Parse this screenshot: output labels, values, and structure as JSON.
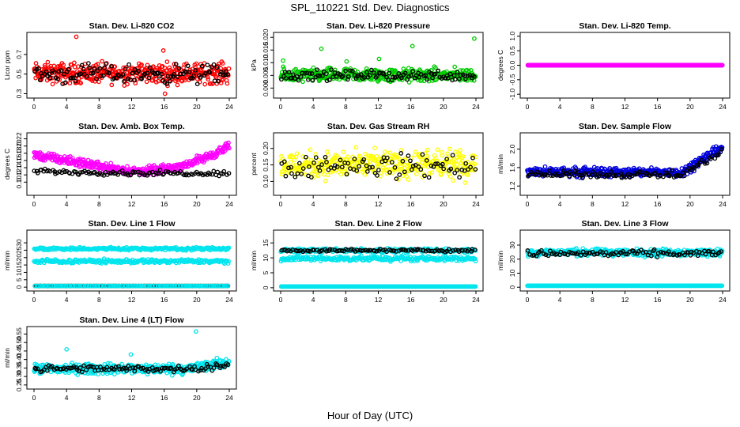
{
  "figure": {
    "title": "SPL_110221  Std. Dev. Diagnostics",
    "xlabel": "Hour of Day (UTC)"
  },
  "chart_data": [
    {
      "type": "scatter",
      "title": "Stan. Dev. Li-820 CO2",
      "ylabel": "Licor ppm",
      "xlim": [
        0,
        24
      ],
      "ylim": [
        0.28,
        0.9
      ],
      "xticks": [
        "0",
        "4",
        "8",
        "12",
        "16",
        "20",
        "24"
      ],
      "yticks": [
        "0.3",
        "0.5",
        "0.7"
      ],
      "ytick_values": [
        0.3,
        0.5,
        0.7
      ],
      "series": [
        {
          "color": "#ff0000",
          "pattern": {
            "kind": "band",
            "count": 420,
            "low": 0.36,
            "high": 0.66
          },
          "extra_points": [
            {
              "x": 5.2,
              "y": 0.88
            },
            {
              "x": 16.1,
              "y": 0.3
            },
            {
              "x": 15.9,
              "y": 0.74
            }
          ]
        },
        {
          "color": "#000000",
          "pattern": {
            "kind": "band",
            "count": 120,
            "low": 0.36,
            "high": 0.64
          }
        }
      ]
    },
    {
      "type": "scatter",
      "title": "Stan. Dev. Li-820 Pressure",
      "ylabel": "kPa",
      "xlim": [
        0,
        24
      ],
      "ylim": [
        -0.003,
        0.021
      ],
      "xticks": [
        "0",
        "4",
        "8",
        "12",
        "16",
        "20",
        "24"
      ],
      "yticks": [
        "0.000",
        "0.005",
        "0.010",
        "0.015",
        "0.020"
      ],
      "ytick_values": [
        0.0,
        0.005,
        0.01,
        0.015,
        0.02
      ],
      "series": [
        {
          "color": "#00cc00",
          "pattern": {
            "kind": "band",
            "count": 420,
            "low": 0.001,
            "high": 0.009
          },
          "extra_points": [
            {
              "x": 23.8,
              "y": 0.0195
            },
            {
              "x": 16.2,
              "y": 0.0165
            },
            {
              "x": 5.0,
              "y": 0.0155
            },
            {
              "x": 0.3,
              "y": 0.0108
            },
            {
              "x": 8.1,
              "y": 0.0105
            },
            {
              "x": 12.1,
              "y": 0.0115
            }
          ]
        },
        {
          "color": "#000000",
          "pattern": {
            "kind": "band",
            "count": 110,
            "low": 0.002,
            "high": 0.008
          }
        }
      ]
    },
    {
      "type": "scatter",
      "title": "Stan. Dev. Li-820 Temp.",
      "ylabel": "degrees C",
      "xlim": [
        0,
        24
      ],
      "ylim": [
        -1.05,
        1.05
      ],
      "xticks": [
        "0",
        "4",
        "8",
        "12",
        "16",
        "20",
        "24"
      ],
      "yticks": [
        "-1.0",
        "-0.5",
        "0.0",
        "0.5",
        "1.0"
      ],
      "ytick_values": [
        -1.0,
        -0.5,
        0.0,
        0.5,
        1.0
      ],
      "series": [
        {
          "color": "#000000",
          "pattern": {
            "kind": "line",
            "count": 150,
            "value": 0.0
          }
        },
        {
          "color": "#ff00ff",
          "pattern": {
            "kind": "line",
            "count": 300,
            "value": 0.0
          }
        }
      ]
    },
    {
      "type": "scatter",
      "title": "Stan. Dev. Amb. Box Temp.",
      "ylabel": "degrees C",
      "xlim": [
        0,
        24
      ],
      "ylim": [
        0.07,
        0.23
      ],
      "xticks": [
        "0",
        "4",
        "8",
        "12",
        "16",
        "20",
        "24"
      ],
      "yticks": [
        "0.10",
        "0.12",
        "0.14",
        "0.16",
        "0.18",
        "0.20",
        "0.22"
      ],
      "ytick_values": [
        0.1,
        0.12,
        0.14,
        0.16,
        0.18,
        0.2,
        0.22
      ],
      "series": [
        {
          "color": "#ff00ff",
          "pattern": {
            "kind": "u",
            "count": 420,
            "start": 0.175,
            "mid": 0.13,
            "end": 0.2,
            "spread": 0.035
          }
        },
        {
          "color": "#000000",
          "pattern": {
            "kind": "u",
            "count": 110,
            "start": 0.13,
            "mid": 0.125,
            "end": 0.125,
            "spread": 0.02
          }
        }
      ]
    },
    {
      "type": "scatter",
      "title": "Stan. Dev. Gas Stream RH",
      "ylabel": "percent",
      "xlim": [
        0,
        24
      ],
      "ylim": [
        0.065,
        0.24
      ],
      "xticks": [
        "0",
        "4",
        "8",
        "12",
        "16",
        "20",
        "24"
      ],
      "yticks": [
        "0.10",
        "0.15",
        "0.20"
      ],
      "ytick_values": [
        0.1,
        0.15,
        0.2
      ],
      "series": [
        {
          "color": "#ffff00",
          "pattern": {
            "kind": "band",
            "count": 380,
            "low": 0.09,
            "high": 0.21
          }
        },
        {
          "color": "#000000",
          "pattern": {
            "kind": "band",
            "count": 90,
            "low": 0.095,
            "high": 0.2
          }
        }
      ]
    },
    {
      "type": "scatter",
      "title": "Stan. Dev. Sample Flow",
      "ylabel": "ml/min",
      "xlim": [
        0,
        24
      ],
      "ylim": [
        1.05,
        2.3
      ],
      "xticks": [
        "0",
        "4",
        "8",
        "12",
        "16",
        "20",
        "24"
      ],
      "yticks": [
        "1.2",
        "1.6",
        "2.0"
      ],
      "ytick_values": [
        1.2,
        1.6,
        2.0
      ],
      "series": [
        {
          "color": "#0000dd",
          "pattern": {
            "kind": "rise",
            "count": 430,
            "base": 1.5,
            "spread": 0.3,
            "rise_start": 19,
            "rise_end": 2.05
          }
        },
        {
          "color": "#000000",
          "pattern": {
            "kind": "rise",
            "count": 110,
            "base": 1.45,
            "spread": 0.2,
            "rise_start": 19,
            "rise_end": 1.95
          }
        }
      ]
    },
    {
      "type": "scatter",
      "title": "Stan. Dev. Line 1 Flow",
      "ylabel": "ml/min",
      "xlim": [
        0,
        24
      ],
      "ylim": [
        -1,
        37
      ],
      "xticks": [
        "0",
        "4",
        "8",
        "12",
        "16",
        "20",
        "24"
      ],
      "yticks": [
        "0",
        "5",
        "10",
        "15",
        "20",
        "25",
        "30"
      ],
      "ytick_values": [
        0,
        5,
        10,
        15,
        20,
        25,
        30
      ],
      "series": [
        {
          "color": "#00e5ee",
          "pattern": {
            "kind": "band",
            "count": 260,
            "low": 24.5,
            "high": 27.5
          }
        },
        {
          "color": "#00e5ee",
          "pattern": {
            "kind": "band",
            "count": 260,
            "low": 15.5,
            "high": 19.5
          }
        },
        {
          "color": "#000000",
          "pattern": {
            "kind": "line",
            "count": 140,
            "value": 0.8
          }
        },
        {
          "color": "#00e5ee",
          "pattern": {
            "kind": "line",
            "count": 140,
            "value": 0.8
          }
        }
      ]
    },
    {
      "type": "scatter",
      "title": "Stan. Dev. Line 2 Flow",
      "ylabel": "ml/min",
      "xlim": [
        0,
        24
      ],
      "ylim": [
        -0.3,
        18.5
      ],
      "xticks": [
        "0",
        "4",
        "8",
        "12",
        "16",
        "20",
        "24"
      ],
      "yticks": [
        "0",
        "5",
        "10",
        "15"
      ],
      "ytick_values": [
        0,
        5,
        10,
        15
      ],
      "series": [
        {
          "color": "#00e5ee",
          "pattern": {
            "kind": "band",
            "count": 260,
            "low": 11.5,
            "high": 13.5
          }
        },
        {
          "color": "#00e5ee",
          "pattern": {
            "kind": "band",
            "count": 260,
            "low": 8.5,
            "high": 11.0
          }
        },
        {
          "color": "#000000",
          "pattern": {
            "kind": "band",
            "count": 100,
            "low": 11.8,
            "high": 13.2
          }
        },
        {
          "color": "#00e5ee",
          "pattern": {
            "kind": "line",
            "count": 280,
            "value": 0.4
          }
        }
      ]
    },
    {
      "type": "scatter",
      "title": "Stan. Dev. Line 3 Flow",
      "ylabel": "ml/min",
      "xlim": [
        0,
        24
      ],
      "ylim": [
        -1,
        39
      ],
      "xticks": [
        "0",
        "4",
        "8",
        "12",
        "16",
        "20",
        "24"
      ],
      "yticks": [
        "0",
        "10",
        "20",
        "30"
      ],
      "ytick_values": [
        0,
        10,
        20,
        30
      ],
      "series": [
        {
          "color": "#00e5ee",
          "pattern": {
            "kind": "band",
            "count": 420,
            "low": 21,
            "high": 28.5
          }
        },
        {
          "color": "#000000",
          "pattern": {
            "kind": "band",
            "count": 100,
            "low": 20.5,
            "high": 27.5
          }
        },
        {
          "color": "#00e5ee",
          "pattern": {
            "kind": "line",
            "count": 280,
            "value": 1.0
          }
        }
      ]
    },
    {
      "type": "scatter",
      "title": "Stan. Dev. Line 4 (LT) Flow",
      "ylabel": "ml/min",
      "xlim": [
        0,
        24
      ],
      "ylim": [
        0.24,
        0.58
      ],
      "xticks": [
        "0",
        "4",
        "8",
        "12",
        "16",
        "20",
        "24"
      ],
      "yticks": [
        "0.25",
        "0.30",
        "0.35",
        "0.40",
        "0.45",
        "0.50",
        "0.55"
      ],
      "ytick_values": [
        0.25,
        0.3,
        0.35,
        0.4,
        0.45,
        0.5,
        0.55
      ],
      "series": [
        {
          "color": "#00e5ee",
          "pattern": {
            "kind": "rise",
            "count": 430,
            "base": 0.345,
            "spread": 0.09,
            "rise_start": 19,
            "rise_end": 0.385
          },
          "extra_points": [
            {
              "x": 19.9,
              "y": 0.565
            },
            {
              "x": 4.0,
              "y": 0.46
            },
            {
              "x": 11.9,
              "y": 0.43
            }
          ]
        },
        {
          "color": "#000000",
          "pattern": {
            "kind": "rise",
            "count": 110,
            "base": 0.345,
            "spread": 0.06,
            "rise_start": 19,
            "rise_end": 0.37
          }
        }
      ]
    }
  ]
}
